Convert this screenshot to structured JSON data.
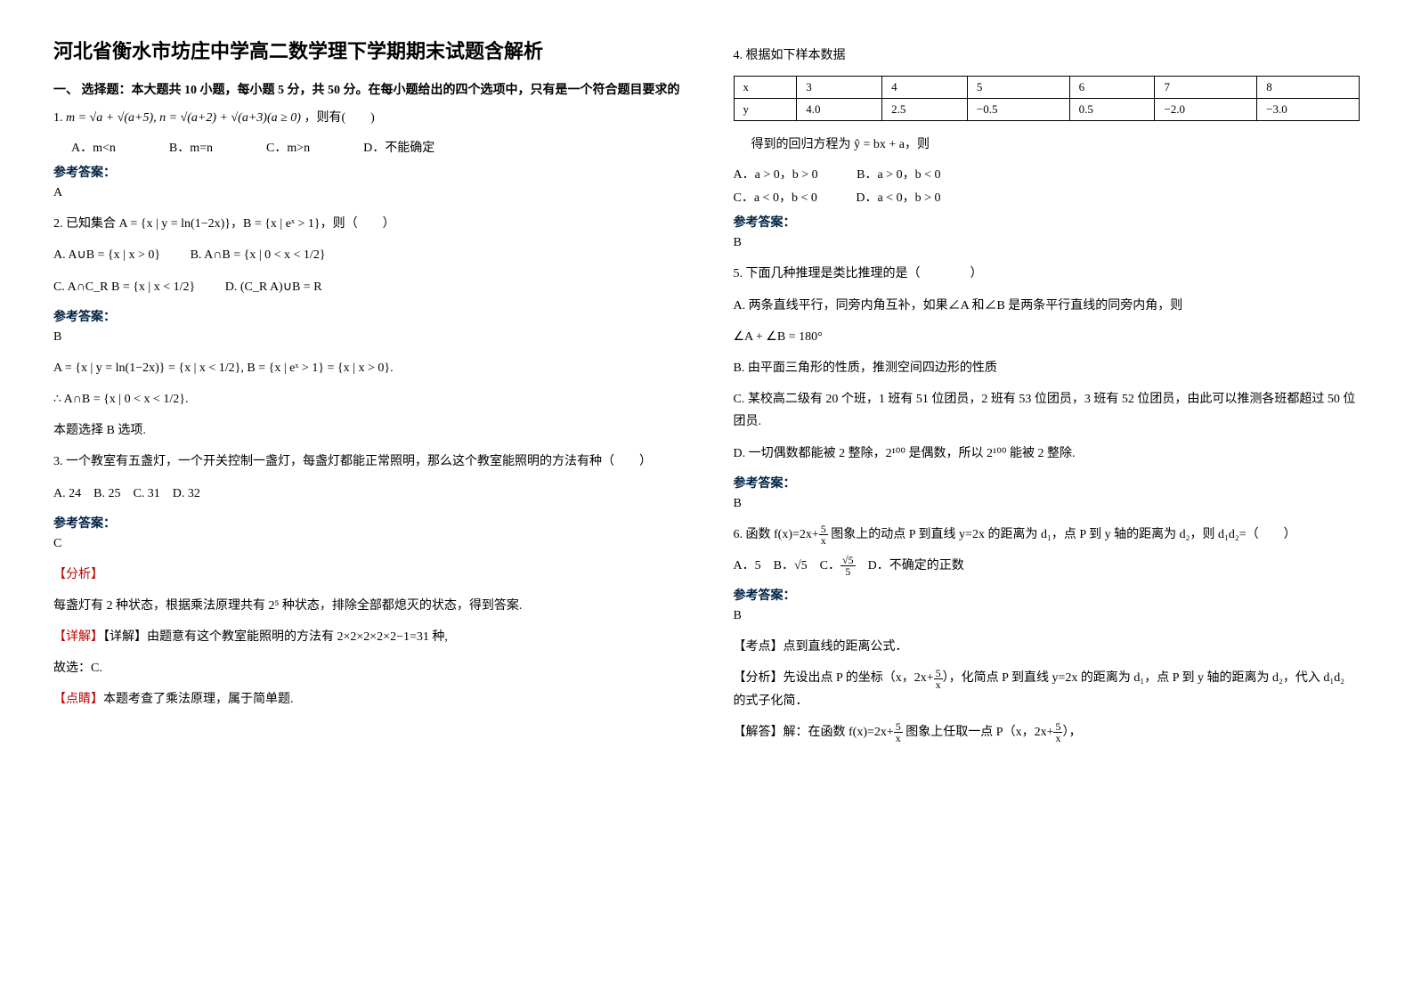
{
  "title": "河北省衡水市坊庄中学高二数学理下学期期末试题含解析",
  "section1_intro": "一、 选择题：本大题共 10 小题，每小题 5 分，共 50 分。在每小题给出的四个选项中，只有是一个符合题目要求的",
  "q1": {
    "stem_prefix": "1. ",
    "formula": "m = √a + √(a+5), n = √(a+2) + √(a+3)(a ≥ 0)",
    "tail": "，则有(　　)",
    "opts": {
      "A": "A．m<n",
      "B": "B．m=n",
      "C": "C．m>n",
      "D": "D．不能确定"
    },
    "ans_label": "参考答案：",
    "ans": "A"
  },
  "q2": {
    "stem": "2. 已知集合 A = {x | y = ln(1−2x)}，B = {x | eˣ > 1}，则（　　）",
    "optA": "A∪B = {x | x > 0}",
    "optB": "A∩B = {x | 0 < x < 1/2}",
    "optC": "A∩C_R B = {x | x < 1/2}",
    "optD": "(C_R A)∪B = R",
    "ans_label": "参考答案：",
    "ans": "B",
    "expl1": "A = {x | y = ln(1−2x)} = {x | x < 1/2}, B = {x | eˣ > 1} = {x | x > 0}.",
    "expl2": "∴ A∩B = {x | 0 < x < 1/2}.",
    "expl3": "本题选择 B 选项."
  },
  "q3": {
    "stem": "3. 一个教室有五盏灯，一个开关控制一盏灯，每盏灯都能正常照明，那么这个教室能照明的方法有种（　　）",
    "opts": "A. 24　B. 25　C. 31　D. 32",
    "ans_label": "参考答案：",
    "ans": "C",
    "fx": "【分析】",
    "l1": "每盏灯有 2 种状态，根据乘法原理共有 2⁵ 种状态，排除全部都熄灭的状态，得到答案.",
    "l2": "【详解】由题意有这个教室能照明的方法有 2×2×2×2×2−1=31 种,",
    "l3": "故选：C.",
    "l4": "【点睛】本题考查了乘法原理，属于简单题."
  },
  "q4": {
    "stem": "4. 根据如下样本数据",
    "table": {
      "r1": [
        "x",
        "3",
        "4",
        "5",
        "6",
        "7",
        "8"
      ],
      "r2": [
        "y",
        "4.0",
        "2.5",
        "−0.5",
        "0.5",
        "−2.0",
        "−3.0"
      ]
    },
    "line": "得到的回归方程为 ŷ = bx + a，则",
    "A": "A．a > 0，b > 0",
    "B": "B．a > 0，b < 0",
    "C": "C．a < 0，b < 0",
    "D": "D．a < 0，b > 0",
    "ans_label": "参考答案：",
    "ans": "B"
  },
  "q5": {
    "stem": "5. 下面几种推理是类比推理的是（　　　　）",
    "A": "A. 两条直线平行，同旁内角互补，如果∠A 和∠B 是两条平行直线的同旁内角，则",
    "A2": "∠A + ∠B = 180°",
    "B": "B. 由平面三角形的性质，推测空间四边形的性质",
    "C": "C. 某校高二级有 20 个班，1 班有 51 位团员，2 班有 53 位团员，3 班有 52 位团员，由此可以推测各班都超过 50 位团员.",
    "D": "D. 一切偶数都能被 2 整除，2¹⁰⁰ 是偶数，所以 2¹⁰⁰ 能被 2 整除.",
    "ans_label": "参考答案：",
    "ans": "B"
  },
  "q6": {
    "stem_a": "6. 函数 ",
    "stem_fx": "f(x)=2x+",
    "stem_b": " 图象上的动点 P 到直线 y=2x 的距离为 d₁，点 P 到 y 轴的距离为 d₂，则 d₁d₂=（　　）",
    "opts": "A．5　B．√5　C．√5/5　D．不确定的正数",
    "ans_label": "参考答案：",
    "ans": "B",
    "kd": "【考点】点到直线的距离公式．",
    "fx_a": "【分析】先设出点 P 的坐标（x，2x+",
    "fx_b": "），化简点 P 到直线 y=2x 的距离为 d₁，点 P 到 y 轴的距离为 d₂，代入 d₁d₂ 的式子化简．",
    "jd_a": "【解答】解：在函数 ",
    "jd_b": " 图象上任取一点 P（x，2x+",
    "jd_c": "），"
  }
}
